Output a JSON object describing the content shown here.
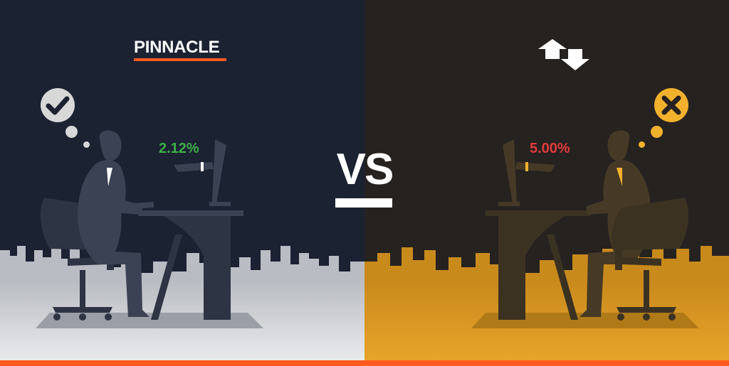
{
  "left": {
    "brand": "PINNACLE",
    "margin": "2.12%",
    "verdict_icon": "checkmark-circle-icon",
    "colors": {
      "background": "#1b2232",
      "city": "#c9ccd1",
      "figure": "#2d3444",
      "margin_text": "#3fae49",
      "accent": "#ff5a1f"
    }
  },
  "center": {
    "vs": "VS"
  },
  "right": {
    "brand_icon": "swap-arrows-icon",
    "margin": "5.00%",
    "verdict_icon": "x-circle-icon",
    "colors": {
      "background": "#262220",
      "city": "#d9961f",
      "figure": "#3b3222",
      "margin_text": "#e23b3b",
      "accent": "#f2b12d"
    }
  },
  "footer": {
    "bar_color": "#ff5a1f"
  }
}
